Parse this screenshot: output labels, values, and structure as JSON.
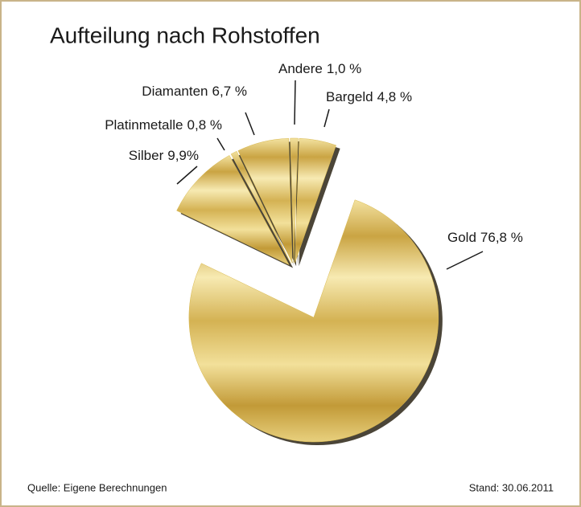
{
  "chart_data": {
    "type": "pie",
    "title": "Aufteilung nach Rohstoffen",
    "categories": [
      "Bargeld",
      "Gold",
      "Silber",
      "Platinmetalle",
      "Diamanten",
      "Andere"
    ],
    "values": [
      4.8,
      76.8,
      9.9,
      0.8,
      6.7,
      1.0
    ],
    "value_labels": [
      "4,8 %",
      "76,8 %",
      "9,9%",
      "0,8 %",
      "6,7 %",
      "1,0 %"
    ],
    "color": "#d9b94f",
    "source": "Quelle: Eigene Berechnungen",
    "date": "Stand: 30.06.2011"
  }
}
